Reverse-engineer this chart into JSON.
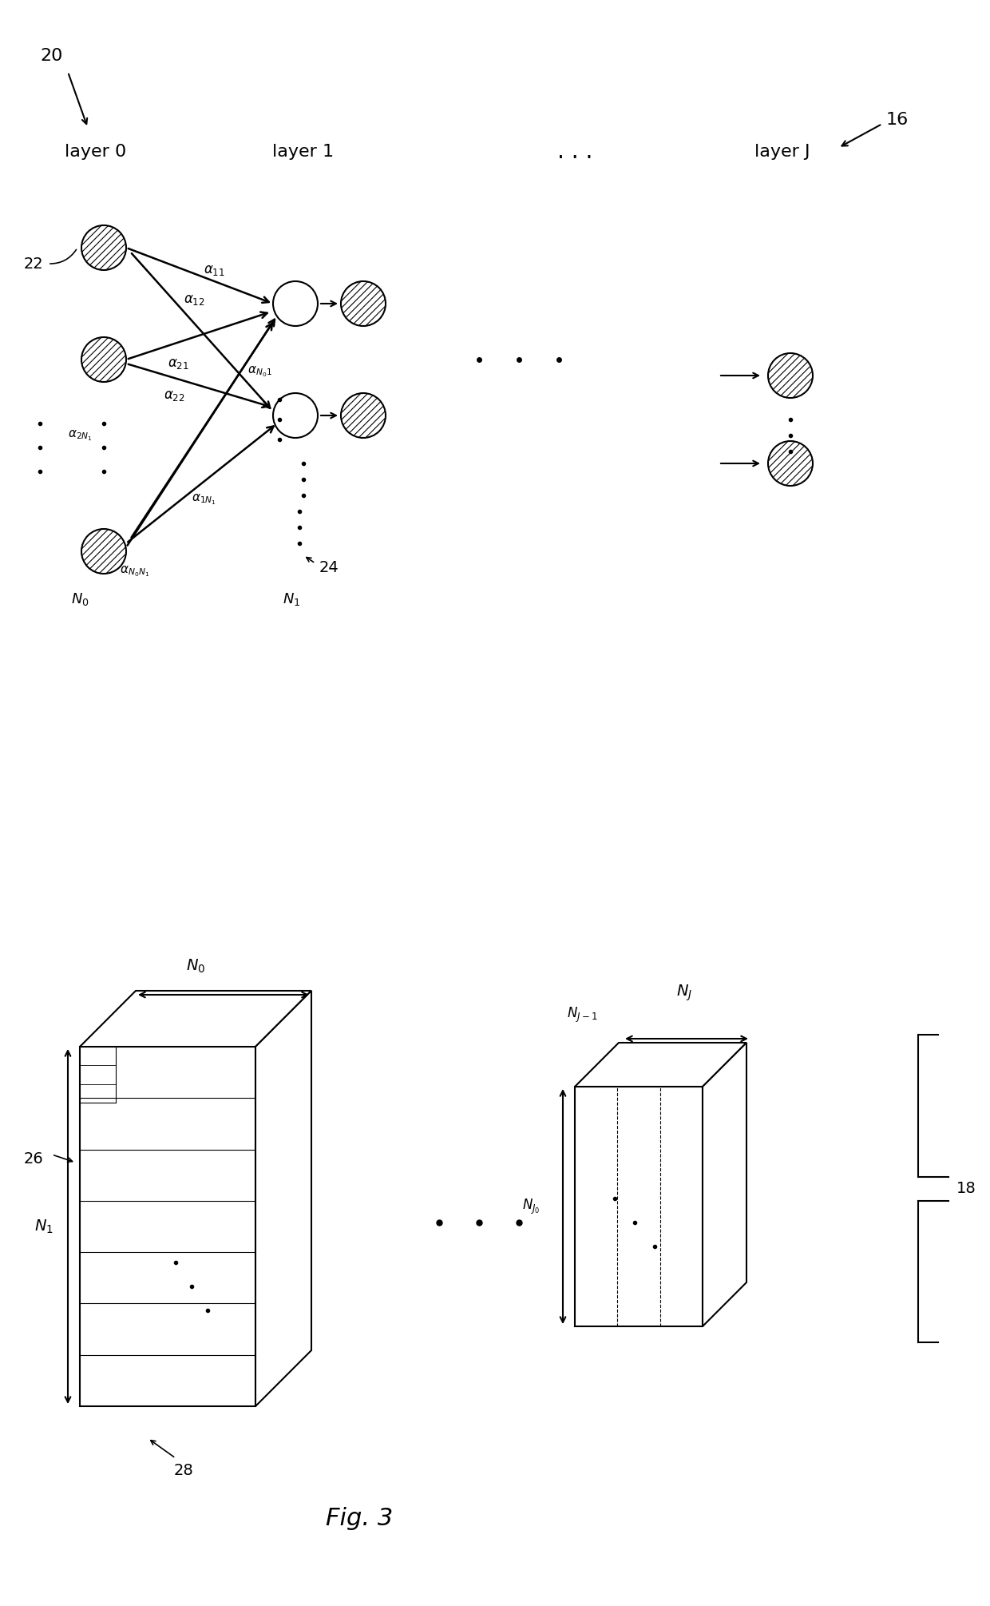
{
  "bg_color": "#ffffff",
  "fig_width": 12.4,
  "fig_height": 20.1,
  "label_20": "20",
  "label_16": "16",
  "label_22": "22",
  "label_24": "24",
  "label_26": "26",
  "label_28": "28",
  "label_18": "18",
  "layer0_label": "layer 0",
  "layer1_label": "layer 1",
  "layerJ_label": "layer J",
  "fig3_label": "Fig. 3",
  "alpha_11": "$\\alpha_{11}$",
  "alpha_12": "$\\alpha_{12}$",
  "alpha_N01": "$\\alpha_{N_01}$",
  "alpha_21": "$\\alpha_{21}$",
  "alpha_22": "$\\alpha_{22}$",
  "alpha_2N1": "$\\alpha_{2N_1}$",
  "alpha_1N1": "$\\alpha_{1N_1}$",
  "alpha_N0N1": "$\\alpha_{N_0N_1}$",
  "N0_label": "$N_0$",
  "N1_label": "$N_1$",
  "NJ_label": "$N_J$",
  "NJ1_label": "$N_{J-1}$",
  "NJ0_label": "$N_{J_0}$"
}
